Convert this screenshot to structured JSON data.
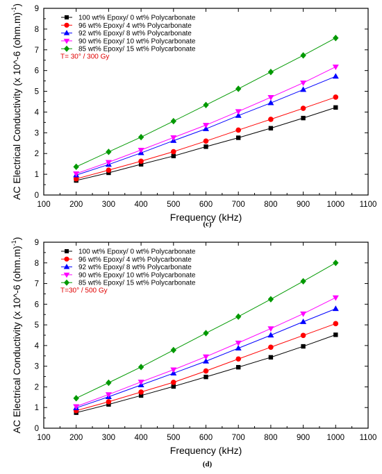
{
  "chart_data": [
    {
      "id": "c",
      "type": "line",
      "caption": "(c)",
      "annotation": "T= 30° / 300 Gy",
      "xlabel": "Frequency (kHz)",
      "ylabel_main": "AC Electrical Conductivity (x 10^-6 (ohm.m)",
      "ylabel_sup": "-1",
      "ylabel_tail": ")",
      "xlim": [
        100,
        1100
      ],
      "ylim": [
        0,
        9
      ],
      "xticks": [
        100,
        200,
        300,
        400,
        500,
        600,
        700,
        800,
        900,
        1000,
        1100
      ],
      "yticks": [
        0,
        1,
        2,
        3,
        4,
        5,
        6,
        7,
        8,
        9
      ],
      "legend_position": "top-left",
      "grid": false,
      "x": [
        200,
        300,
        400,
        500,
        600,
        700,
        800,
        900,
        1000
      ],
      "series": [
        {
          "name": "100 wt% Epoxy/ 0 wt% Polycarbonate",
          "color": "#000000",
          "marker": "square",
          "values": [
            0.7,
            1.07,
            1.48,
            1.88,
            2.33,
            2.76,
            3.22,
            3.71,
            4.22
          ]
        },
        {
          "name": "96 wt% Epoxy/ 4 wt% Polycarbonate",
          "color": "#ff0000",
          "marker": "circle",
          "values": [
            0.78,
            1.2,
            1.63,
            2.09,
            2.6,
            3.13,
            3.65,
            4.18,
            4.72
          ]
        },
        {
          "name": "92 wt% Epoxy/ 8 wt% Polycarbonate",
          "color": "#0000ff",
          "marker": "triangle-up",
          "values": [
            0.96,
            1.47,
            2.03,
            2.62,
            3.19,
            3.83,
            4.44,
            5.08,
            5.72
          ]
        },
        {
          "name": "90 wt% Epoxy/ 10 wt% Polycarbonate",
          "color": "#ff00ff",
          "marker": "triangle-down",
          "values": [
            1.03,
            1.58,
            2.17,
            2.77,
            3.37,
            4.03,
            4.71,
            5.41,
            6.18
          ]
        },
        {
          "name": "85 wt% Epoxy/ 15 wt% Polycarbonate",
          "color": "#009900",
          "marker": "diamond",
          "values": [
            1.36,
            2.08,
            2.79,
            3.56,
            4.34,
            5.12,
            5.93,
            6.73,
            7.57
          ]
        }
      ]
    },
    {
      "id": "d",
      "type": "line",
      "caption": "(d)",
      "annotation": "T=30° / 500 Gy",
      "xlabel": "Frequency (kHz)",
      "ylabel_main": "AC Electrical Conductivity (x 10^-6 (ohm.m)",
      "ylabel_sup": "-1",
      "ylabel_tail": ")",
      "xlim": [
        100,
        1100
      ],
      "ylim": [
        0,
        9
      ],
      "xticks": [
        100,
        200,
        300,
        400,
        500,
        600,
        700,
        800,
        900,
        1000,
        1100
      ],
      "yticks": [
        0,
        1,
        2,
        3,
        4,
        5,
        6,
        7,
        8,
        9
      ],
      "legend_position": "top-left",
      "grid": false,
      "x": [
        200,
        300,
        400,
        500,
        600,
        700,
        800,
        900,
        1000
      ],
      "series": [
        {
          "name": "100 wt% Epoxy/ 0 wt% Polycarbonate",
          "color": "#000000",
          "marker": "square",
          "values": [
            0.75,
            1.15,
            1.58,
            2.02,
            2.48,
            2.95,
            3.43,
            3.96,
            4.52
          ]
        },
        {
          "name": "96 wt% Epoxy/ 4 wt% Polycarbonate",
          "color": "#ff0000",
          "marker": "circle",
          "values": [
            0.85,
            1.28,
            1.75,
            2.22,
            2.77,
            3.35,
            3.92,
            4.49,
            5.06
          ]
        },
        {
          "name": "92 wt% Epoxy/ 8 wt% Polycarbonate",
          "color": "#0000ff",
          "marker": "triangle-up",
          "values": [
            0.98,
            1.52,
            2.09,
            2.66,
            3.24,
            3.87,
            4.5,
            5.15,
            5.78
          ]
        },
        {
          "name": "90 wt% Epoxy/ 10 wt% Polycarbonate",
          "color": "#ff00ff",
          "marker": "triangle-down",
          "values": [
            1.05,
            1.63,
            2.24,
            2.83,
            3.46,
            4.13,
            4.82,
            5.54,
            6.32
          ]
        },
        {
          "name": "85 wt% Epoxy/ 15 wt% Polycarbonate",
          "color": "#009900",
          "marker": "diamond",
          "values": [
            1.45,
            2.2,
            2.96,
            3.78,
            4.6,
            5.4,
            6.24,
            7.11,
            8.0
          ]
        }
      ]
    }
  ]
}
